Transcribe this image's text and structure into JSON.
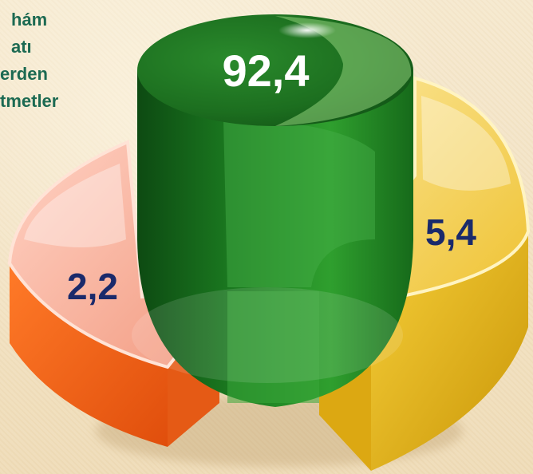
{
  "legend_text": [
    "hám",
    "atı",
    "erden",
    "tmetler"
  ],
  "chart_data": {
    "type": "pie",
    "title": "",
    "slices": [
      {
        "value": 92.4,
        "label": "92,4",
        "color": "#1e7d22",
        "label_color": "#ffffff"
      },
      {
        "value": 5.4,
        "label": "5,4",
        "color": "#e8b612",
        "label_color": "#1a2a6b"
      },
      {
        "value": 2.2,
        "label": "2,2",
        "color": "#f2661c",
        "label_color": "#1a2a6b"
      }
    ],
    "legend": "top-left"
  }
}
